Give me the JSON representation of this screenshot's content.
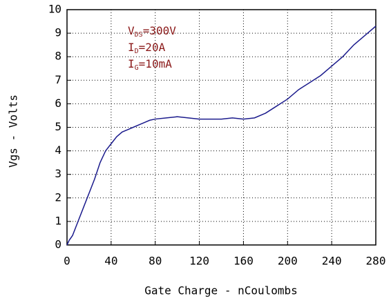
{
  "chart_data": {
    "type": "line",
    "xlabel": "Gate Charge - nCoulombs",
    "ylabel": "Vgs - Volts",
    "annotations": [
      {
        "main": "V",
        "sub": "DS",
        "rest": "=300V"
      },
      {
        "main": "I",
        "sub": "D",
        "rest": "=20A"
      },
      {
        "main": "I",
        "sub": "G",
        "rest": "=10mA"
      }
    ],
    "annotation_color": "#8b1a1a",
    "x": [
      0,
      2,
      5,
      10,
      15,
      20,
      25,
      30,
      35,
      40,
      45,
      50,
      55,
      60,
      65,
      70,
      75,
      80,
      90,
      100,
      110,
      120,
      130,
      140,
      150,
      160,
      170,
      180,
      190,
      200,
      210,
      220,
      230,
      240,
      250,
      260,
      270,
      280
    ],
    "series": [
      {
        "name": "Vgs",
        "color": "#1a1a8c",
        "values": [
          0,
          0.2,
          0.4,
          1.0,
          1.6,
          2.2,
          2.8,
          3.5,
          4.0,
          4.3,
          4.6,
          4.8,
          4.9,
          5.0,
          5.1,
          5.2,
          5.3,
          5.35,
          5.4,
          5.45,
          5.4,
          5.35,
          5.35,
          5.35,
          5.4,
          5.35,
          5.4,
          5.6,
          5.9,
          6.2,
          6.6,
          6.9,
          7.2,
          7.6,
          8.0,
          8.5,
          8.9,
          9.3
        ]
      }
    ],
    "xlim": [
      0,
      280
    ],
    "xticks": [
      0,
      40,
      80,
      120,
      160,
      200,
      240,
      280
    ],
    "ylim": [
      0,
      10
    ],
    "yticks": [
      0,
      1,
      2,
      3,
      4,
      5,
      6,
      7,
      8,
      9,
      10
    ],
    "grid": true
  }
}
